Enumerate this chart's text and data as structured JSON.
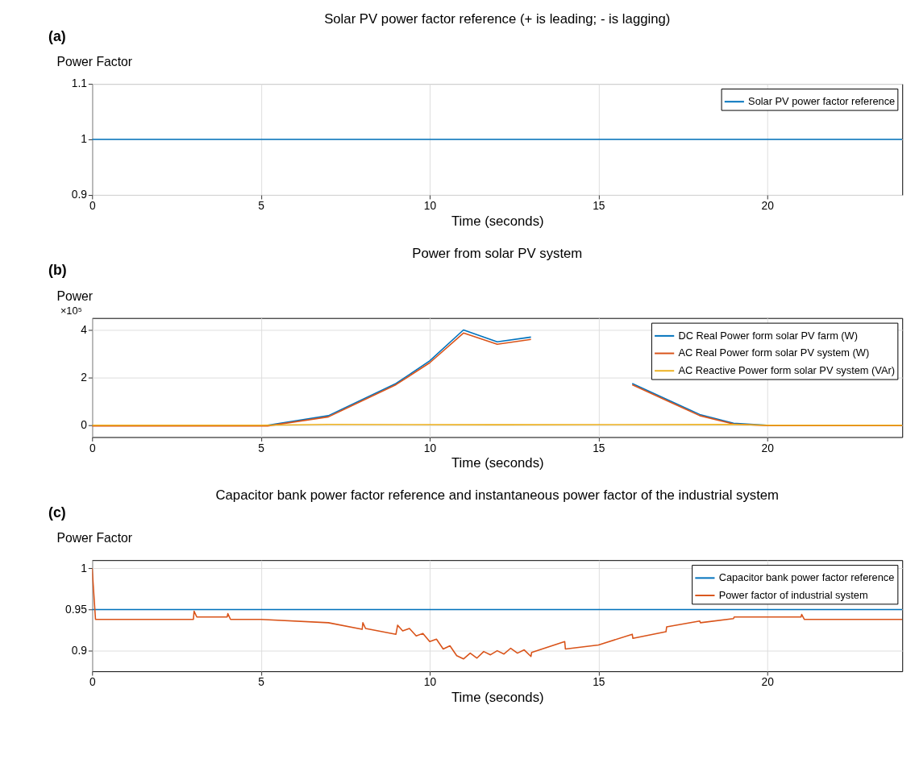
{
  "chart_data": [
    {
      "type": "line",
      "title": "Solar PV power factor reference (+ is leading; - is lagging)",
      "xlabel": "Time (seconds)",
      "ylabel": "Power Factor",
      "annotations": [
        "(a)"
      ],
      "xlim": [
        0,
        24
      ],
      "xticks": [
        0,
        5,
        10,
        15,
        20
      ],
      "ylim": [
        0.9,
        1.1
      ],
      "yticks": [
        0.9,
        1,
        1.1
      ],
      "grid": true,
      "legend": "top right",
      "series": [
        {
          "name": "Solar PV power factor reference",
          "color": "#0072bd",
          "x": [
            0,
            24
          ],
          "values": [
            1,
            1
          ]
        }
      ]
    },
    {
      "type": "line",
      "title": "Power from solar PV system",
      "xlabel": "Time (seconds)",
      "ylabel": "Power",
      "annotations": [
        "(b)",
        "×10⁵"
      ],
      "xlim": [
        0,
        24
      ],
      "xticks": [
        0,
        5,
        10,
        15,
        20
      ],
      "ylim": [
        -0.5,
        4.5
      ],
      "yticks": [
        0,
        2,
        4
      ],
      "grid": true,
      "legend": "top right",
      "series": [
        {
          "name": "DC Real Power form solar PV farm (W)",
          "color": "#0072bd",
          "x": [
            0,
            5.2,
            7,
            9,
            10,
            11,
            12,
            13,
            14,
            15,
            16,
            17,
            18,
            19,
            20,
            24
          ],
          "values": [
            0,
            0,
            0.4,
            1.75,
            2.7,
            4.0,
            3.5,
            3.7,
            null,
            null,
            1.75,
            1.1,
            0.45,
            0.08,
            0,
            0
          ]
        },
        {
          "name": "AC Real Power form solar PV system (W)",
          "color": "#d95319",
          "x": [
            0,
            5.2,
            7,
            9,
            10,
            11,
            12,
            13,
            14,
            15,
            16,
            17,
            18,
            19,
            20,
            24
          ],
          "values": [
            -0.03,
            -0.03,
            0.35,
            1.7,
            2.62,
            3.87,
            3.4,
            3.6,
            null,
            null,
            1.7,
            1.05,
            0.4,
            0.05,
            -0.02,
            -0.02
          ]
        },
        {
          "name": "AC Reactive Power form solar PV system (VAr)",
          "color": "#edb120",
          "x": [
            0,
            5,
            7,
            12,
            19,
            20,
            24
          ],
          "values": [
            0,
            0,
            0.03,
            0.02,
            0.03,
            0,
            0
          ]
        }
      ]
    },
    {
      "type": "line",
      "title": "Capacitor bank power factor reference and instantaneous power factor of the industrial system",
      "xlabel": "Time (seconds)",
      "ylabel": "Power Factor",
      "annotations": [
        "(c)"
      ],
      "xlim": [
        0,
        24
      ],
      "xticks": [
        0,
        5,
        10,
        15,
        20
      ],
      "ylim": [
        0.875,
        1.01
      ],
      "yticks": [
        0.9,
        0.95,
        1
      ],
      "grid": true,
      "legend": "top right",
      "series": [
        {
          "name": "Capacitor bank power factor reference",
          "color": "#0072bd",
          "x": [
            0,
            24
          ],
          "values": [
            0.95,
            0.95
          ]
        },
        {
          "name": "Power factor of industrial system",
          "color": "#d95319",
          "x": [
            0,
            0.1,
            3,
            3.02,
            3.1,
            4,
            4.02,
            4.1,
            5,
            7,
            8,
            8.02,
            8.1,
            9,
            9.05,
            9.2,
            9.4,
            9.6,
            9.8,
            10,
            10.2,
            10.4,
            10.6,
            10.8,
            11,
            11.2,
            11.4,
            11.6,
            11.8,
            12,
            12.2,
            12.4,
            12.6,
            12.8,
            13,
            13.02,
            14,
            14.02,
            15,
            16,
            16.02,
            17,
            17.02,
            18,
            18.02,
            19,
            19.02,
            20,
            21,
            21.02,
            21.1,
            24
          ],
          "values": [
            1,
            0.938,
            0.938,
            0.948,
            0.941,
            0.941,
            0.945,
            0.938,
            0.938,
            0.934,
            0.926,
            0.934,
            0.927,
            0.92,
            0.931,
            0.924,
            0.927,
            0.918,
            0.921,
            0.911,
            0.914,
            0.902,
            0.906,
            0.894,
            0.89,
            0.897,
            0.891,
            0.899,
            0.895,
            0.9,
            0.896,
            0.903,
            0.897,
            0.901,
            0.893,
            0.898,
            0.911,
            0.902,
            0.907,
            0.92,
            0.915,
            0.923,
            0.929,
            0.936,
            0.934,
            0.939,
            0.941,
            0.941,
            0.941,
            0.944,
            0.938,
            0.938
          ]
        }
      ]
    }
  ]
}
